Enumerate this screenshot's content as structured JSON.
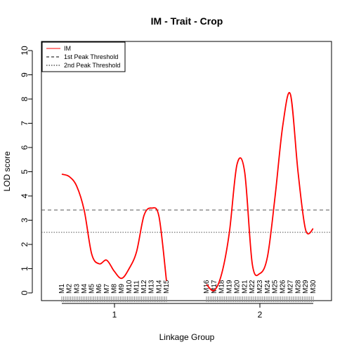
{
  "chart_data": {
    "type": "line",
    "title": "IM - Trait - Crop",
    "xlabel": "Linkage Group",
    "ylabel": "LOD score",
    "ylim": [
      0,
      10
    ],
    "y_ticks": [
      "0",
      "1",
      "2",
      "3",
      "4",
      "5",
      "6",
      "7",
      "8",
      "9",
      "10"
    ],
    "x_ticks": [
      "1",
      "2"
    ],
    "legend": {
      "position": "top-left",
      "entries": [
        {
          "label": "IM",
          "style": "solid",
          "color": "#ff0000"
        },
        {
          "label": "1st Peak Threshold",
          "style": "dashed",
          "color": "#000000"
        },
        {
          "label": "2nd Peak Threshold",
          "style": "dotted",
          "color": "#000000"
        }
      ]
    },
    "thresholds": [
      {
        "name": "1st Peak Threshold",
        "value": 3.42,
        "style": "dashed",
        "color": "#555555"
      },
      {
        "name": "2nd Peak Threshold",
        "value": 2.5,
        "style": "dotted",
        "color": "#555555"
      }
    ],
    "groups": [
      {
        "name": "1",
        "markers": [
          "M1",
          "M2",
          "M3",
          "M4",
          "M5",
          "M6",
          "M7",
          "M8",
          "M9",
          "M10",
          "M11",
          "M12",
          "M13",
          "M14",
          "M15"
        ],
        "curve_x": [
          0,
          1,
          2,
          3,
          4,
          5,
          6,
          7,
          8,
          9,
          10,
          11,
          12,
          13,
          14
        ],
        "curve_y": [
          4.9,
          4.8,
          4.4,
          3.4,
          1.6,
          1.2,
          1.35,
          0.9,
          0.6,
          1.0,
          1.7,
          3.2,
          3.5,
          3.15,
          0.5
        ],
        "color": "#ff0000"
      },
      {
        "name": "2",
        "markers": [
          "M16",
          "M17",
          "M18",
          "M19",
          "M20",
          "M21",
          "M22",
          "M23",
          "M24",
          "M25",
          "M26",
          "M27",
          "M28",
          "M29",
          "M30"
        ],
        "curve_x": [
          0,
          1,
          2,
          3,
          4,
          5,
          6,
          7,
          8,
          9,
          10,
          11,
          12,
          13,
          14
        ],
        "curve_y": [
          0.35,
          0.1,
          0.8,
          2.5,
          5.3,
          5.0,
          1.2,
          0.8,
          1.5,
          4.0,
          6.9,
          8.2,
          5.0,
          2.6,
          2.65
        ],
        "color": "#ff0000"
      }
    ]
  }
}
